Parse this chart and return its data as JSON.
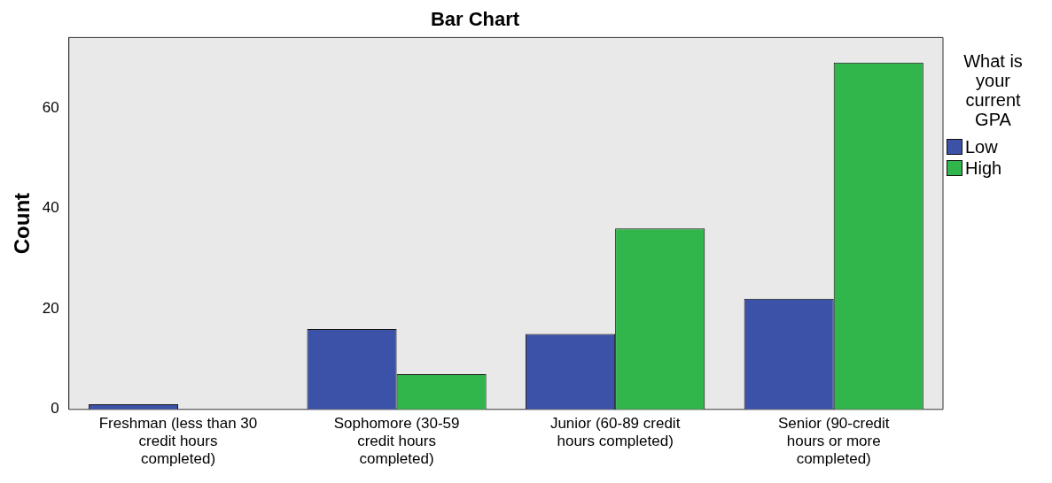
{
  "chart_data": {
    "type": "bar",
    "title": "Bar Chart",
    "ylabel": "Count",
    "legend_title": "What is your current GPA",
    "categories": [
      "Freshman (less than 30 credit hours completed)",
      "Sophomore (30-59 credit hours completed)",
      "Junior (60-89 credit hours completed)",
      "Senior (90-credit hours or more completed)"
    ],
    "series": [
      {
        "name": "Low",
        "color": "#3c52a8",
        "values": [
          1,
          16,
          15,
          22
        ]
      },
      {
        "name": "High",
        "color": "#30b64a",
        "values": [
          0,
          7,
          36,
          69
        ]
      }
    ],
    "ylim": [
      0,
      74
    ],
    "yticks": [
      0,
      20,
      40,
      60
    ],
    "grid": false,
    "legend": "right"
  }
}
